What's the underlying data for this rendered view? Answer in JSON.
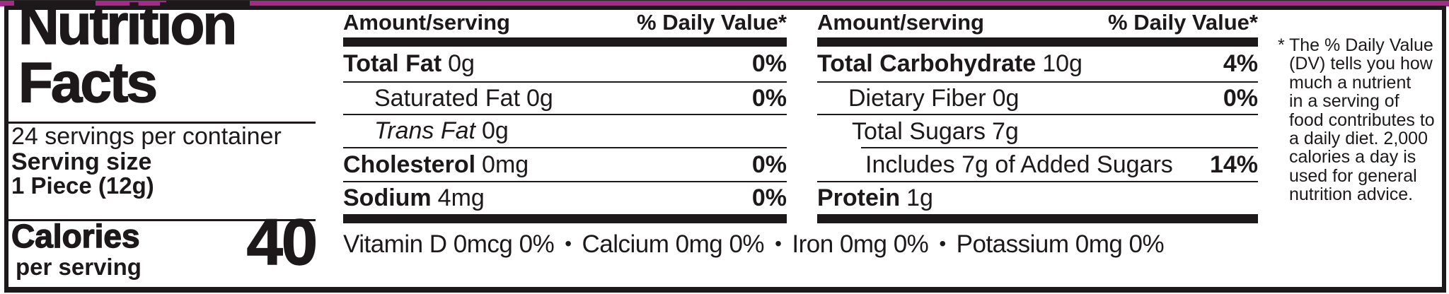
{
  "colors": {
    "ink": "#1d191a",
    "magenta": "#a32b87"
  },
  "title": {
    "line1": "Nutrition",
    "line2": "Facts"
  },
  "serving": {
    "per_container": "24 servings per container",
    "size_label": "Serving size",
    "size_value": "1 Piece (12g)"
  },
  "calories": {
    "label": "Calories",
    "sublabel": "per serving",
    "value": "40"
  },
  "columns": [
    {
      "amount_header": "Amount/serving",
      "dv_header": "% Daily Value*",
      "rows": [
        {
          "name": "Total Fat",
          "amount": "0g",
          "dv": "0%"
        },
        {
          "name": "Saturated Fat",
          "amount": "0g",
          "dv": "0%"
        },
        {
          "name": "Trans Fat",
          "amount": "0g",
          "dv": ""
        },
        {
          "name": "Cholesterol",
          "amount": "0mg",
          "dv": "0%"
        },
        {
          "name": "Sodium",
          "amount": "4mg",
          "dv": "0%"
        }
      ]
    },
    {
      "amount_header": "Amount/serving",
      "dv_header": "% Daily Value*",
      "rows": [
        {
          "name": "Total Carbohydrate",
          "amount": "10g",
          "dv": "4%"
        },
        {
          "name": "Dietary Fiber",
          "amount": "0g",
          "dv": "0%"
        },
        {
          "name": "Total Sugars",
          "amount": "7g",
          "dv": ""
        },
        {
          "name": "Includes 7g of Added Sugars",
          "amount": "",
          "dv": "14%"
        },
        {
          "name": "Protein",
          "amount": "1g",
          "dv": ""
        }
      ]
    }
  ],
  "micronutrients": {
    "separator": "•",
    "items": [
      "Vitamin D 0mcg 0%",
      "Calcium 0mg 0%",
      "Iron 0mg 0%",
      "Potassium 0mg 0%"
    ]
  },
  "footnote": {
    "marker": "*",
    "lines": [
      "The % Daily Value",
      "(DV) tells you how",
      "much a nutrient",
      "in a serving of",
      "food contributes to",
      "a daily diet. 2,000",
      "calories a day is",
      "used for general",
      "nutrition advice."
    ]
  }
}
